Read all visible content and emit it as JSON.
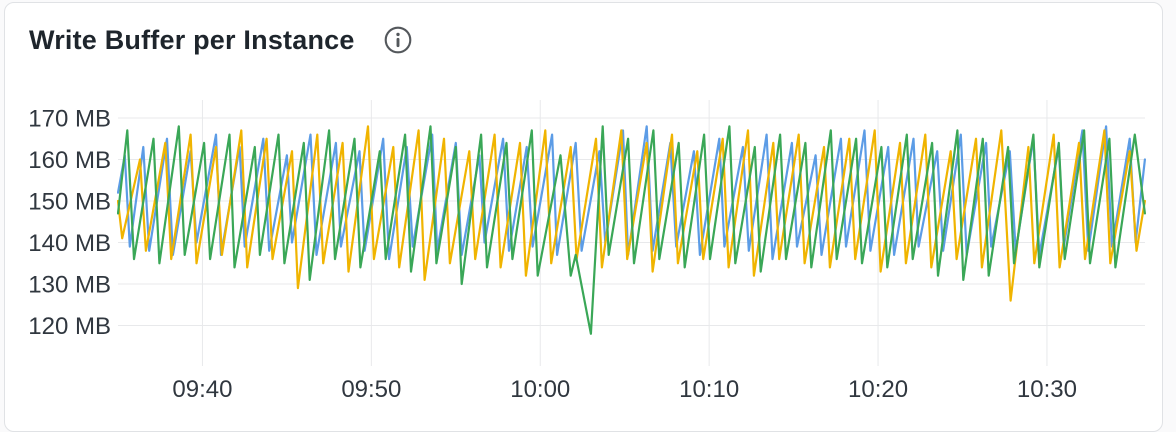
{
  "panel": {
    "title": "Write Buffer per Instance"
  },
  "icons": {
    "header_icon": "info-circle-icon"
  },
  "colors": {
    "card_background": "#ffffff",
    "card_border": "#e0e2e5",
    "grid": "#e8e9eb",
    "axis_label": "#30373f",
    "title_text": "#1e252c",
    "info_icon": "#54585c",
    "series_blue": "#5c9ce6",
    "series_yellow": "#f0b400",
    "series_green": "#3aa757"
  },
  "chart_data": {
    "type": "line",
    "title": "Write Buffer per Instance",
    "xlabel": "",
    "ylabel": "",
    "y_unit": "MB",
    "grid": true,
    "legend_position": "none",
    "ylim": [
      110,
      174
    ],
    "xlim_minutes": [
      0,
      60.8
    ],
    "y_ticks": [
      {
        "value": 170,
        "label": "170 MB"
      },
      {
        "value": 160,
        "label": "160 MB"
      },
      {
        "value": 150,
        "label": "150 MB"
      },
      {
        "value": 140,
        "label": "140 MB"
      },
      {
        "value": 130,
        "label": "130 MB"
      },
      {
        "value": 120,
        "label": "120 MB"
      }
    ],
    "x_ticks": [
      {
        "t": 5,
        "label": "09:40"
      },
      {
        "t": 15,
        "label": "09:50"
      },
      {
        "t": 25,
        "label": "10:00"
      },
      {
        "t": 35,
        "label": "10:10"
      },
      {
        "t": 45,
        "label": "10:20"
      },
      {
        "t": 55,
        "label": "10:30"
      }
    ],
    "series": [
      {
        "name": "blue",
        "color": "#5c9ce6",
        "points": [
          [
            0,
            152
          ],
          [
            0.4,
            161
          ],
          [
            0.7,
            139
          ],
          [
            1.5,
            163
          ],
          [
            1.85,
            138
          ],
          [
            2.9,
            165
          ],
          [
            3.25,
            137
          ],
          [
            4.3,
            162
          ],
          [
            4.65,
            140
          ],
          [
            5.8,
            166
          ],
          [
            6.1,
            137
          ],
          [
            7.2,
            163
          ],
          [
            7.5,
            139
          ],
          [
            8.6,
            165
          ],
          [
            8.95,
            138
          ],
          [
            10.0,
            161
          ],
          [
            10.3,
            140
          ],
          [
            11.4,
            166
          ],
          [
            11.75,
            137
          ],
          [
            12.9,
            164
          ],
          [
            13.2,
            139
          ],
          [
            14.3,
            162
          ],
          [
            14.6,
            138
          ],
          [
            15.7,
            165
          ],
          [
            16.05,
            136
          ],
          [
            17.1,
            163
          ],
          [
            17.45,
            139
          ],
          [
            18.6,
            166
          ],
          [
            18.9,
            138
          ],
          [
            20.0,
            164
          ],
          [
            20.35,
            137
          ],
          [
            21.4,
            161
          ],
          [
            21.7,
            140
          ],
          [
            22.8,
            165
          ],
          [
            23.15,
            138
          ],
          [
            24.2,
            163
          ],
          [
            24.55,
            139
          ],
          [
            25.7,
            166
          ],
          [
            26.0,
            137
          ],
          [
            27.1,
            164
          ],
          [
            27.45,
            138
          ],
          [
            28.5,
            162
          ],
          [
            28.85,
            140
          ],
          [
            29.9,
            167
          ],
          [
            30.2,
            137
          ],
          [
            31.3,
            168
          ],
          [
            31.65,
            138
          ],
          [
            32.7,
            164
          ],
          [
            33.05,
            139
          ],
          [
            34.1,
            162
          ],
          [
            34.45,
            137
          ],
          [
            35.6,
            165
          ],
          [
            35.9,
            139
          ],
          [
            37.0,
            163
          ],
          [
            37.35,
            138
          ],
          [
            38.4,
            166
          ],
          [
            38.75,
            136
          ],
          [
            39.9,
            164
          ],
          [
            40.2,
            139
          ],
          [
            41.3,
            161
          ],
          [
            41.65,
            137
          ],
          [
            42.8,
            165
          ],
          [
            43.1,
            139
          ],
          [
            44.2,
            167
          ],
          [
            44.55,
            138
          ],
          [
            45.6,
            163
          ],
          [
            45.95,
            137
          ],
          [
            47.1,
            165
          ],
          [
            47.4,
            139
          ],
          [
            48.5,
            162
          ],
          [
            48.85,
            138
          ],
          [
            49.9,
            166
          ],
          [
            50.25,
            137
          ],
          [
            51.4,
            164
          ],
          [
            51.7,
            139
          ],
          [
            52.8,
            162
          ],
          [
            53.15,
            138
          ],
          [
            54.2,
            165
          ],
          [
            54.55,
            137
          ],
          [
            55.7,
            163
          ],
          [
            56.0,
            139
          ],
          [
            57.1,
            167
          ],
          [
            57.45,
            138
          ],
          [
            58.5,
            168
          ],
          [
            58.85,
            139
          ],
          [
            59.9,
            165
          ],
          [
            60.25,
            140
          ],
          [
            60.8,
            160
          ]
        ]
      },
      {
        "name": "yellow",
        "color": "#f0b400",
        "points": [
          [
            0,
            150
          ],
          [
            0.25,
            141
          ],
          [
            1.3,
            160
          ],
          [
            1.65,
            138
          ],
          [
            2.8,
            164
          ],
          [
            3.15,
            136
          ],
          [
            4.3,
            166
          ],
          [
            4.65,
            135
          ],
          [
            5.8,
            163
          ],
          [
            6.15,
            137
          ],
          [
            7.3,
            167
          ],
          [
            7.65,
            134
          ],
          [
            8.8,
            165
          ],
          [
            9.15,
            136
          ],
          [
            10.3,
            162
          ],
          [
            10.65,
            129
          ],
          [
            11.8,
            166
          ],
          [
            12.15,
            135
          ],
          [
            13.3,
            164
          ],
          [
            13.65,
            133
          ],
          [
            14.8,
            168
          ],
          [
            15.15,
            136
          ],
          [
            16.3,
            163
          ],
          [
            16.65,
            134
          ],
          [
            17.8,
            167
          ],
          [
            18.15,
            131
          ],
          [
            19.3,
            165
          ],
          [
            19.65,
            135
          ],
          [
            20.8,
            162
          ],
          [
            21.15,
            136
          ],
          [
            22.3,
            166
          ],
          [
            22.65,
            134
          ],
          [
            23.8,
            164
          ],
          [
            24.15,
            132
          ],
          [
            25.3,
            167
          ],
          [
            25.65,
            135
          ],
          [
            26.8,
            163
          ],
          [
            27.15,
            136
          ],
          [
            28.3,
            165
          ],
          [
            28.65,
            134
          ],
          [
            29.8,
            167
          ],
          [
            30.15,
            136
          ],
          [
            31.3,
            164
          ],
          [
            31.65,
            133
          ],
          [
            32.8,
            166
          ],
          [
            33.15,
            135
          ],
          [
            34.3,
            162
          ],
          [
            34.65,
            136
          ],
          [
            35.8,
            165
          ],
          [
            36.15,
            134
          ],
          [
            37.3,
            167
          ],
          [
            37.65,
            132
          ],
          [
            38.8,
            164
          ],
          [
            39.15,
            136
          ],
          [
            40.3,
            166
          ],
          [
            40.65,
            135
          ],
          [
            41.8,
            163
          ],
          [
            42.15,
            134
          ],
          [
            43.3,
            165
          ],
          [
            43.65,
            136
          ],
          [
            44.8,
            167
          ],
          [
            45.15,
            133
          ],
          [
            46.3,
            164
          ],
          [
            46.65,
            135
          ],
          [
            47.8,
            166
          ],
          [
            48.15,
            134
          ],
          [
            49.3,
            162
          ],
          [
            49.65,
            136
          ],
          [
            50.8,
            165
          ],
          [
            51.15,
            134
          ],
          [
            52.3,
            167
          ],
          [
            52.85,
            126
          ],
          [
            53.9,
            163
          ],
          [
            54.25,
            135
          ],
          [
            55.4,
            166
          ],
          [
            55.75,
            134
          ],
          [
            56.9,
            164
          ],
          [
            57.25,
            136
          ],
          [
            58.4,
            167
          ],
          [
            58.75,
            135
          ],
          [
            59.9,
            162
          ],
          [
            60.3,
            138
          ],
          [
            60.8,
            150
          ]
        ]
      },
      {
        "name": "green",
        "color": "#3aa757",
        "points": [
          [
            0,
            147
          ],
          [
            0.55,
            167
          ],
          [
            0.95,
            136
          ],
          [
            2.1,
            165
          ],
          [
            2.45,
            135
          ],
          [
            3.6,
            168
          ],
          [
            3.95,
            137
          ],
          [
            5.1,
            164
          ],
          [
            5.45,
            136
          ],
          [
            6.6,
            166
          ],
          [
            6.9,
            134
          ],
          [
            8.1,
            163
          ],
          [
            8.4,
            137
          ],
          [
            9.5,
            166
          ],
          [
            9.85,
            135
          ],
          [
            11.0,
            164
          ],
          [
            11.35,
            131
          ],
          [
            12.5,
            167
          ],
          [
            12.85,
            136
          ],
          [
            14.0,
            165
          ],
          [
            14.35,
            134
          ],
          [
            15.5,
            162
          ],
          [
            15.85,
            136
          ],
          [
            17.0,
            166
          ],
          [
            17.35,
            133
          ],
          [
            18.5,
            168
          ],
          [
            18.85,
            135
          ],
          [
            20.0,
            163
          ],
          [
            20.35,
            130
          ],
          [
            21.5,
            166
          ],
          [
            21.85,
            134
          ],
          [
            23.0,
            164
          ],
          [
            23.35,
            136
          ],
          [
            24.5,
            167
          ],
          [
            24.85,
            132
          ],
          [
            26.2,
            161
          ],
          [
            26.8,
            132
          ],
          [
            27.1,
            137
          ],
          [
            28.0,
            118
          ],
          [
            28.7,
            168
          ],
          [
            29.05,
            137
          ],
          [
            30.2,
            165
          ],
          [
            30.55,
            135
          ],
          [
            31.7,
            167
          ],
          [
            32.05,
            136
          ],
          [
            33.2,
            164
          ],
          [
            33.55,
            134
          ],
          [
            34.7,
            166
          ],
          [
            35.05,
            136
          ],
          [
            36.2,
            168
          ],
          [
            36.55,
            135
          ],
          [
            37.7,
            163
          ],
          [
            38.05,
            133
          ],
          [
            39.2,
            166
          ],
          [
            39.55,
            136
          ],
          [
            40.7,
            164
          ],
          [
            41.05,
            134
          ],
          [
            42.2,
            167
          ],
          [
            42.55,
            136
          ],
          [
            43.7,
            165
          ],
          [
            44.05,
            135
          ],
          [
            45.2,
            163
          ],
          [
            45.55,
            134
          ],
          [
            46.7,
            166
          ],
          [
            47.05,
            136
          ],
          [
            48.2,
            164
          ],
          [
            48.55,
            132
          ],
          [
            49.7,
            167
          ],
          [
            50.05,
            131
          ],
          [
            51.2,
            165
          ],
          [
            51.55,
            132
          ],
          [
            52.7,
            163
          ],
          [
            53.05,
            135
          ],
          [
            54.2,
            166
          ],
          [
            54.55,
            134
          ],
          [
            55.7,
            164
          ],
          [
            56.05,
            136
          ],
          [
            57.2,
            167
          ],
          [
            57.55,
            135
          ],
          [
            58.7,
            165
          ],
          [
            59.05,
            134
          ],
          [
            60.2,
            166
          ],
          [
            60.8,
            147
          ]
        ]
      }
    ]
  }
}
